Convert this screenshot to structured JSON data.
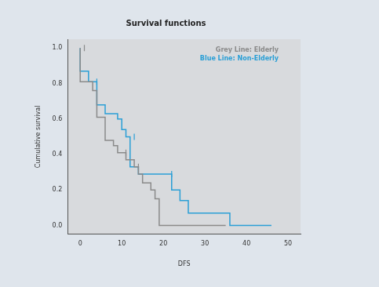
{
  "chart_data": {
    "type": "line",
    "line_style": "steps",
    "title": "Survival functions",
    "x_label": "DFS",
    "y_label": "Cumulative survival",
    "xlim": [
      -3,
      53
    ],
    "xticks": [
      0,
      10,
      20,
      30,
      40,
      50
    ],
    "ylim": [
      -0.05,
      1.05
    ],
    "yticks": [
      {
        "value": 0,
        "label": "0.0"
      },
      {
        "value": 0.2,
        "label": "0.2"
      },
      {
        "value": 0.4,
        "label": "0.4"
      },
      {
        "value": 0.6,
        "label": "0.6"
      },
      {
        "value": 0.8,
        "label": "0.8"
      },
      {
        "value": 1.0,
        "label": "1.0"
      }
    ],
    "grid": false,
    "legend": "upper right",
    "series": [
      {
        "name": "Grey Line: Elderly",
        "color": "#8a8a8a",
        "x": [
          0,
          3,
          4,
          6,
          8,
          9,
          11,
          13,
          14,
          15,
          17,
          18,
          19,
          35
        ],
        "values": [
          1.0,
          0.81,
          0.76,
          0.61,
          0.48,
          0.45,
          0.41,
          0.37,
          0.33,
          0.29,
          0.24,
          0.2,
          0.15,
          0.0
        ],
        "censored_x": [
          1,
          11,
          14
        ],
        "censored_values": [
          1.0,
          0.41,
          0.33
        ]
      },
      {
        "name": "Blue Line: Non-Elderly",
        "color": "#2a9fd6",
        "x": [
          0,
          2,
          4,
          6,
          9,
          10,
          11,
          12,
          14,
          22,
          24,
          26,
          36,
          46
        ],
        "values": [
          1.0,
          0.87,
          0.81,
          0.68,
          0.63,
          0.6,
          0.54,
          0.5,
          0.33,
          0.29,
          0.2,
          0.14,
          0.07,
          0.0
        ],
        "censored_x": [
          4,
          13,
          22
        ],
        "censored_values": [
          0.81,
          0.5,
          0.29
        ]
      }
    ]
  }
}
